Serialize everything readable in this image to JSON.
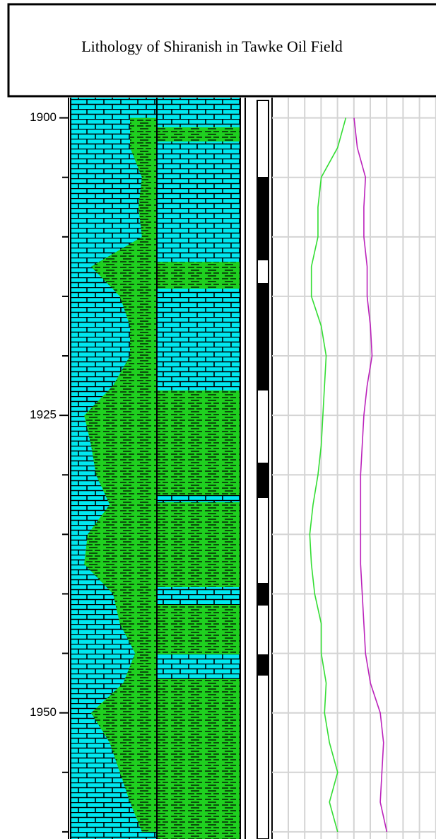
{
  "chart_data": {
    "type": "well-log",
    "title": "Lithology of Shiranish in Tawke Oil Field",
    "ylim": [
      1898.3,
      1960.6
    ],
    "yticks": [
      1900,
      1925,
      1950
    ],
    "minor_yticks": [
      1905,
      1910,
      1915,
      1920,
      1930,
      1935,
      1940,
      1945,
      1955,
      1960
    ],
    "depth": [
      1900,
      1902.5,
      1905,
      1907.5,
      1910,
      1912.5,
      1915,
      1917.5,
      1920,
      1922.5,
      1925,
      1927.5,
      1930,
      1932.5,
      1935,
      1937.5,
      1940,
      1942.5,
      1945,
      1947.5,
      1950,
      1952.5,
      1955,
      1957.5,
      1960
    ],
    "xlim": [
      0,
      100
    ],
    "lithology": {
      "color": "#1fd01f",
      "values": [
        35,
        35,
        42,
        40,
        42,
        12,
        29,
        35,
        35,
        25,
        8,
        12,
        15,
        23,
        10,
        8,
        25,
        29,
        38,
        31,
        12,
        23,
        29,
        35,
        42
      ]
    },
    "series": [
      {
        "color": "#33dd33",
        "values": [
          45,
          40,
          30,
          28,
          28,
          24,
          24,
          30,
          33,
          32,
          31,
          30,
          28,
          25,
          23,
          24,
          26,
          30,
          30,
          33,
          32,
          35,
          40,
          35,
          40
        ]
      },
      {
        "color": "#bb22bb",
        "values": [
          50,
          52,
          57,
          56,
          56,
          58,
          58,
          60,
          61,
          58,
          56,
          55,
          54,
          54,
          54,
          54,
          55,
          56,
          57,
          60,
          66,
          68,
          67,
          66,
          70
        ]
      }
    ]
  }
}
